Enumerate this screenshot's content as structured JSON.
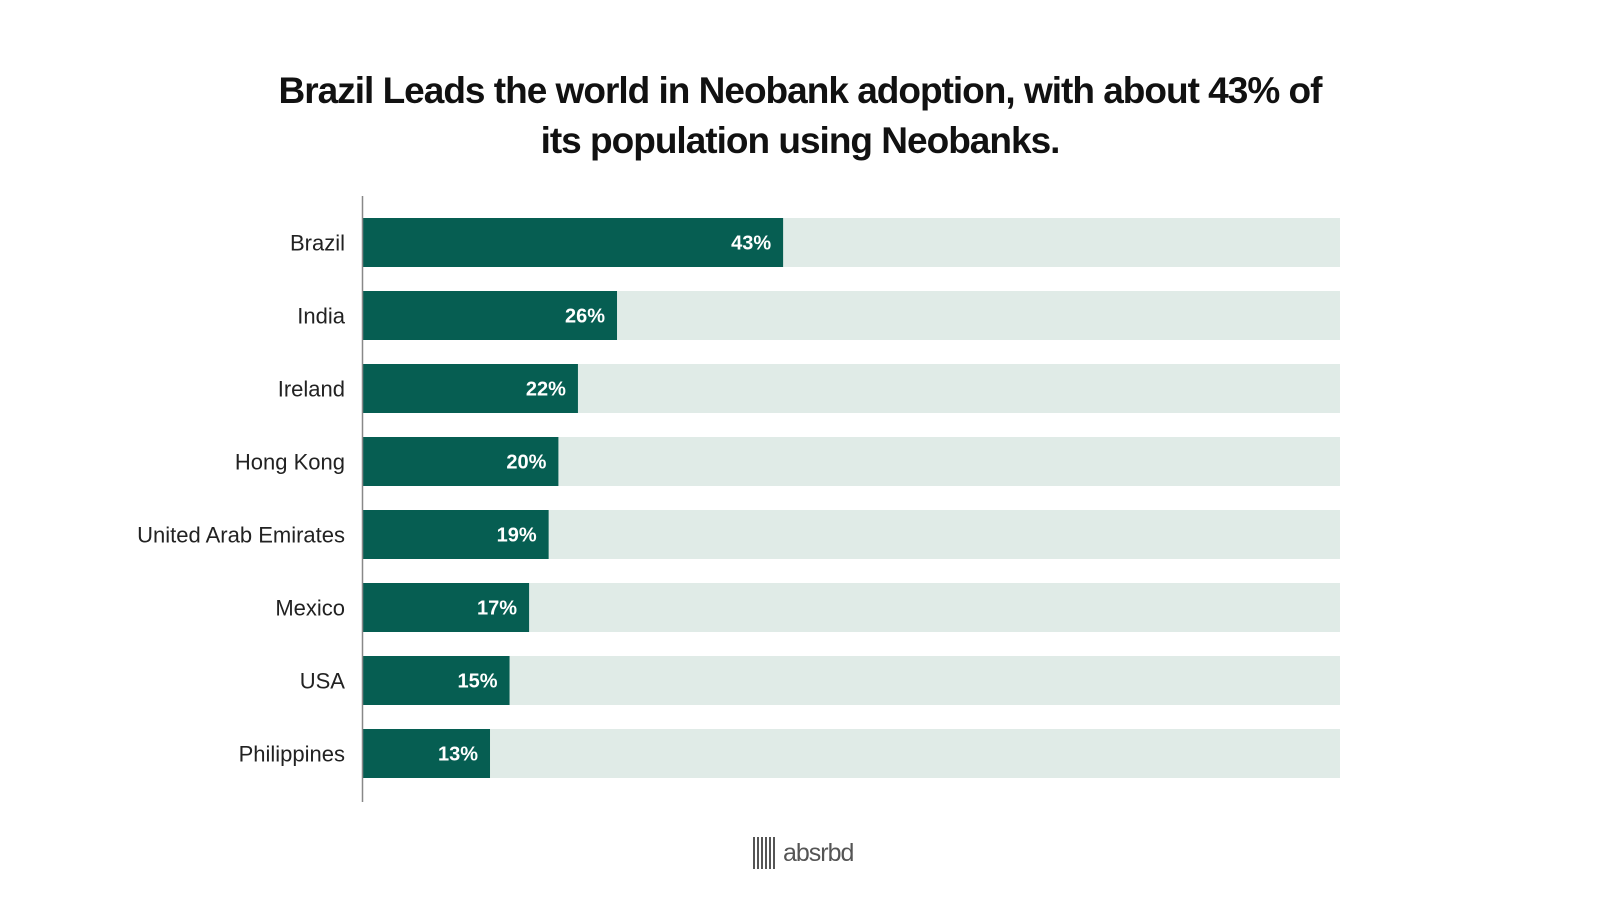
{
  "title": {
    "line1": "Brazil Leads the world in Neobank adoption, with about 43% of",
    "line2": "its population using Neobanks."
  },
  "colors": {
    "bar": "#065e52",
    "track": "#e0ebe7",
    "axis": "#888888",
    "label": "#222222",
    "value_label": "#ffffff"
  },
  "chart_data": {
    "type": "bar",
    "orientation": "horizontal",
    "title": "Brazil Leads the world in Neobank adoption, with about 43% of its population using Neobanks.",
    "categories": [
      "Brazil",
      "India",
      "Ireland",
      "Hong Kong",
      "United Arab Emirates",
      "Mexico",
      "USA",
      "Philippines"
    ],
    "values": [
      43,
      26,
      22,
      20,
      19,
      17,
      15,
      13
    ],
    "value_labels": [
      "43%",
      "26%",
      "22%",
      "20%",
      "19%",
      "17%",
      "15%",
      "13%"
    ],
    "xlim": [
      0,
      100
    ],
    "xlabel": "",
    "ylabel": "",
    "grid": false
  },
  "footer": {
    "logo_text": "absrbd",
    "logo_icon": "barcode-icon"
  }
}
